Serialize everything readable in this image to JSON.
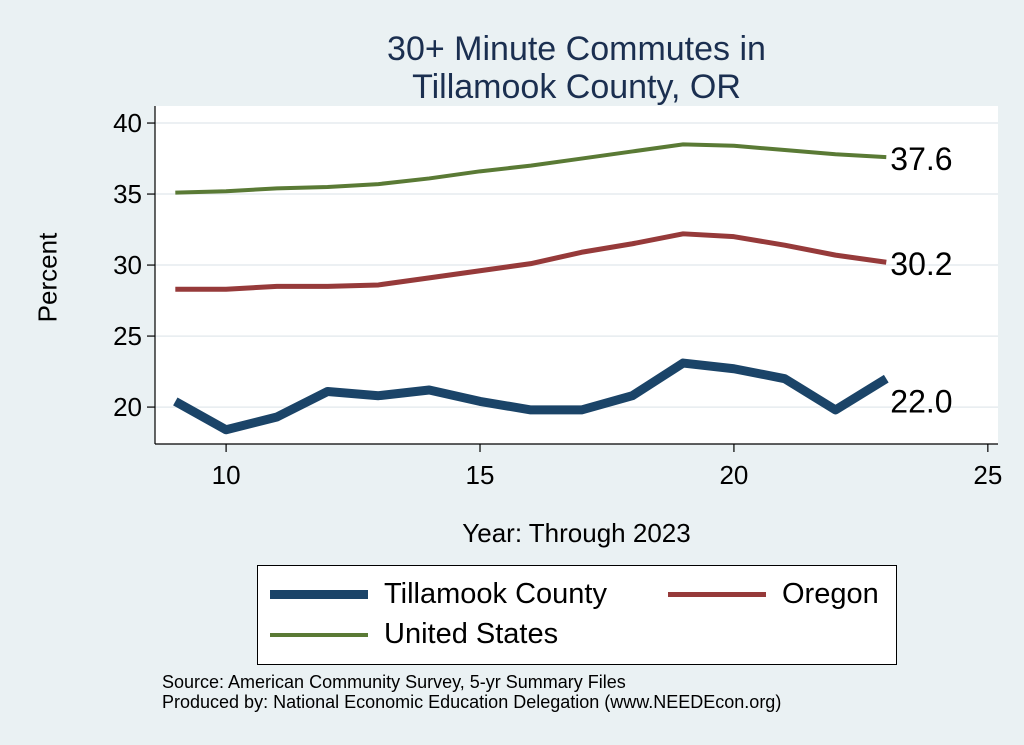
{
  "chart_data": {
    "type": "line",
    "title_line1": "30+ Minute Commutes in",
    "title_line2": "Tillamook County, OR",
    "xlabel": "Year: Through 2023",
    "ylabel": "Percent",
    "xlim": [
      8.6,
      25.2
    ],
    "ylim": [
      17.4,
      41.2
    ],
    "xticks": [
      10,
      15,
      20,
      25
    ],
    "yticks": [
      20,
      25,
      30,
      35,
      40
    ],
    "x": [
      9,
      10,
      11,
      12,
      13,
      14,
      15,
      16,
      17,
      18,
      19,
      20,
      21,
      22,
      23
    ],
    "series": [
      {
        "name": "Tillamook County",
        "color": "#1b4468",
        "width": 9,
        "end_label": "22.0",
        "values": [
          20.4,
          18.4,
          19.3,
          21.1,
          20.8,
          21.2,
          20.4,
          19.8,
          19.8,
          20.8,
          23.1,
          22.7,
          22.0,
          19.8,
          22.0
        ]
      },
      {
        "name": "Oregon",
        "color": "#963a3a",
        "width": 5,
        "end_label": "30.2",
        "values": [
          28.3,
          28.3,
          28.5,
          28.5,
          28.6,
          29.1,
          29.6,
          30.1,
          30.9,
          31.5,
          32.2,
          32.0,
          31.4,
          30.7,
          30.2
        ]
      },
      {
        "name": "United States",
        "color": "#5a7a35",
        "width": 4,
        "end_label": "37.6",
        "values": [
          35.1,
          35.2,
          35.4,
          35.5,
          35.7,
          36.1,
          36.6,
          37.0,
          37.5,
          38.0,
          38.5,
          38.4,
          38.1,
          37.8,
          37.6
        ]
      }
    ]
  },
  "legend": {
    "items": [
      "Tillamook County",
      "Oregon",
      "United States"
    ]
  },
  "source": {
    "line1": "Source: American Community Survey, 5-yr Summary Files",
    "line2": "Produced by: National Economic Education Delegation (www.NEEDEcon.org)"
  }
}
